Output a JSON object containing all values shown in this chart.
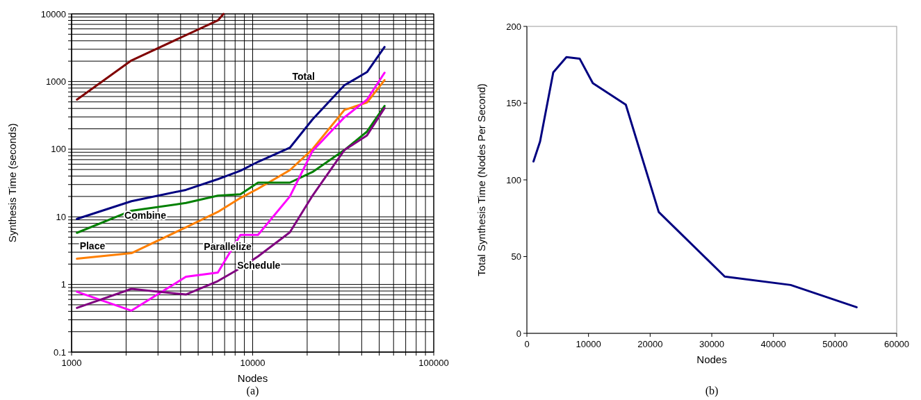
{
  "chart_data": [
    {
      "type": "line",
      "xlabel": "Nodes",
      "ylabel": "Synthesis Time (seconds)",
      "log": "xy",
      "grid": true,
      "xlim": [
        1000,
        100000
      ],
      "ylim": [
        0.1,
        10000
      ],
      "xticks": [
        1000,
        {
          "value": 2000,
          "label": null
        },
        {
          "value": 3000,
          "label": null
        },
        {
          "value": 4000,
          "label": null
        },
        {
          "value": 5000,
          "label": null
        },
        {
          "value": 6000,
          "label": null
        },
        {
          "value": 7000,
          "label": null
        },
        {
          "value": 8000,
          "label": null
        },
        {
          "value": 9000,
          "label": null
        },
        10000,
        {
          "value": 20000,
          "label": null
        },
        {
          "value": 30000,
          "label": null
        },
        {
          "value": 40000,
          "label": null
        },
        {
          "value": 50000,
          "label": null
        },
        {
          "value": 60000,
          "label": null
        },
        {
          "value": 70000,
          "label": null
        },
        {
          "value": 80000,
          "label": null
        },
        {
          "value": 90000,
          "label": null
        },
        100000
      ],
      "yticks": [
        0.1,
        {
          "value": 0.2,
          "label": null
        },
        {
          "value": 0.3,
          "label": null
        },
        {
          "value": 0.4,
          "label": null
        },
        {
          "value": 0.5,
          "label": null
        },
        {
          "value": 0.6,
          "label": null
        },
        {
          "value": 0.7,
          "label": null
        },
        {
          "value": 0.8,
          "label": null
        },
        {
          "value": 0.9,
          "label": null
        },
        1,
        {
          "value": 2,
          "label": null
        },
        {
          "value": 3,
          "label": null
        },
        {
          "value": 4,
          "label": null
        },
        {
          "value": 5,
          "label": null
        },
        {
          "value": 6,
          "label": null
        },
        {
          "value": 7,
          "label": null
        },
        {
          "value": 8,
          "label": null
        },
        {
          "value": 9,
          "label": null
        },
        10,
        {
          "value": 20,
          "label": null
        },
        {
          "value": 30,
          "label": null
        },
        {
          "value": 40,
          "label": null
        },
        {
          "value": 50,
          "label": null
        },
        {
          "value": 60,
          "label": null
        },
        {
          "value": 70,
          "label": null
        },
        {
          "value": 80,
          "label": null
        },
        {
          "value": 90,
          "label": null
        },
        100,
        {
          "value": 200,
          "label": null
        },
        {
          "value": 300,
          "label": null
        },
        {
          "value": 400,
          "label": null
        },
        {
          "value": 500,
          "label": null
        },
        {
          "value": 600,
          "label": null
        },
        {
          "value": 700,
          "label": null
        },
        {
          "value": 800,
          "label": null
        },
        {
          "value": 900,
          "label": null
        },
        1000,
        {
          "value": 2000,
          "label": null
        },
        {
          "value": 3000,
          "label": null
        },
        {
          "value": 4000,
          "label": null
        },
        {
          "value": 5000,
          "label": null
        },
        {
          "value": 6000,
          "label": null
        },
        {
          "value": 7000,
          "label": null
        },
        {
          "value": 8000,
          "label": null
        },
        {
          "value": 9000,
          "label": null
        },
        10000
      ],
      "x": [
        1070,
        2140,
        4280,
        6420,
        8560,
        10700,
        16050,
        21400,
        32100,
        42800,
        53500
      ],
      "series": [
        {
          "color": "#800000",
          "x": [
            1070,
            2140,
            6420,
            6900
          ],
          "values": [
            540,
            2050,
            8000,
            10000
          ]
        },
        {
          "name": "Total",
          "color": "#000080",
          "values": [
            9.3,
            17,
            25,
            36,
            48,
            65,
            105,
            275,
            880,
            1380,
            3240
          ]
        },
        {
          "name": "Place",
          "color": "#ff7f00",
          "values": [
            2.4,
            2.9,
            7,
            11.8,
            19,
            26,
            49,
            100,
            380,
            490,
            1050
          ]
        },
        {
          "name": "Combine",
          "color": "#008000",
          "values": [
            5.8,
            12.3,
            16,
            20.5,
            21.5,
            32,
            32,
            46,
            97,
            182,
            435
          ]
        },
        {
          "name": "Parallelize",
          "color": "#ff00ff",
          "values": [
            0.78,
            0.41,
            1.3,
            1.5,
            5.4,
            5.4,
            20,
            94,
            295,
            540,
            1350
          ]
        },
        {
          "name": "Schedule",
          "color": "#800080",
          "values": [
            0.45,
            0.86,
            0.71,
            1.12,
            1.75,
            2.6,
            5.9,
            20.5,
            97,
            160,
            405
          ]
        }
      ],
      "annotations": [
        "(a)"
      ]
    },
    {
      "type": "line",
      "xlabel": "Nodes",
      "ylabel": "Total Synthesis Time (Nodes Per Second)",
      "grid": false,
      "xlim": [
        0,
        60000
      ],
      "ylim": [
        0,
        200
      ],
      "xticks": [
        0,
        10000,
        20000,
        30000,
        40000,
        50000,
        60000
      ],
      "yticks": [
        0,
        50,
        100,
        150,
        200
      ],
      "x": [
        1070,
        2140,
        4280,
        6420,
        8560,
        10700,
        16050,
        21400,
        32100,
        42800,
        53500
      ],
      "series": [
        {
          "color": "#000080",
          "values": [
            112,
            125,
            170,
            180,
            179,
            163,
            149,
            79,
            37,
            31.5,
            17
          ]
        }
      ],
      "annotations": [
        "(b)"
      ]
    }
  ]
}
